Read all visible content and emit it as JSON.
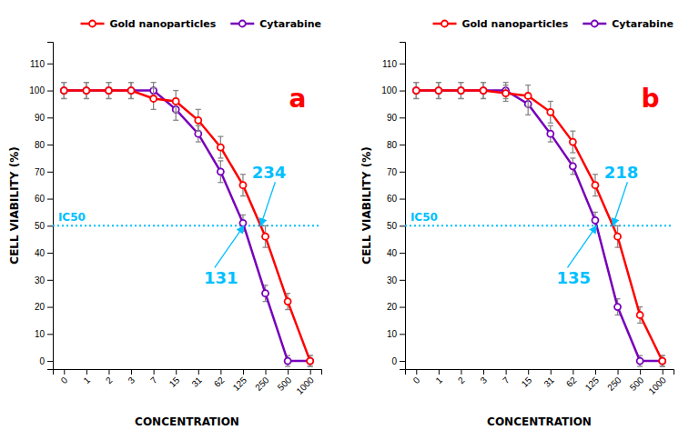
{
  "chart_data": [
    {
      "type": "line",
      "categories": [
        "0",
        "1",
        "2",
        "3",
        "7",
        "15",
        "31",
        "62",
        "125",
        "250",
        "500",
        "1000"
      ],
      "xlabel": "CONCENTRATION",
      "ylabel": "CELL VIABILITY (%)",
      "ylim": [
        -3,
        118
      ],
      "yticks": [
        0,
        10,
        20,
        30,
        40,
        50,
        60,
        70,
        80,
        90,
        100,
        110
      ],
      "grid": false,
      "legend": "upper right",
      "marker": "circle",
      "line_style": "solid",
      "series": [
        {
          "name": "Gold nanoparticles",
          "color": "#ff0000",
          "values": [
            100,
            100,
            100,
            100,
            97,
            96,
            89,
            79,
            65,
            46,
            22,
            0
          ],
          "errors": [
            3,
            3,
            3,
            3,
            4,
            4,
            4,
            4,
            4,
            4,
            3,
            2
          ]
        },
        {
          "name": "Cytarabine",
          "color": "#7700bb",
          "values": [
            100,
            100,
            100,
            100,
            100,
            93,
            84,
            70,
            51,
            25,
            0,
            0
          ],
          "errors": [
            3,
            3,
            3,
            3,
            3,
            4,
            3,
            4,
            3,
            3,
            2,
            2
          ]
        }
      ],
      "annotations": [
        {
          "text": "IC50",
          "y": 50,
          "color": "#00bfff"
        },
        {
          "text": "234",
          "series": "Gold nanoparticles",
          "y": 50,
          "color": "#00bfff"
        },
        {
          "text": "131",
          "series": "Cytarabine",
          "y": 50,
          "color": "#00bfff"
        },
        {
          "text": "a",
          "color": "#ff0000"
        }
      ]
    },
    {
      "type": "line",
      "categories": [
        "0",
        "1",
        "2",
        "3",
        "7",
        "15",
        "31",
        "62",
        "125",
        "250",
        "500",
        "1000"
      ],
      "xlabel": "CONCENTRATION",
      "ylabel": "CELL VIABILITY (%)",
      "ylim": [
        -3,
        118
      ],
      "yticks": [
        0,
        10,
        20,
        30,
        40,
        50,
        60,
        70,
        80,
        90,
        100,
        110
      ],
      "grid": false,
      "legend": "upper right",
      "marker": "circle",
      "line_style": "solid",
      "series": [
        {
          "name": "Gold nanoparticles",
          "color": "#ff0000",
          "values": [
            100,
            100,
            100,
            100,
            99,
            98,
            92,
            81,
            65,
            46,
            17,
            0
          ],
          "errors": [
            3,
            3,
            3,
            3,
            3,
            4,
            4,
            4,
            4,
            4,
            3,
            2
          ]
        },
        {
          "name": "Cytarabine",
          "color": "#7700bb",
          "values": [
            100,
            100,
            100,
            100,
            100,
            95,
            84,
            72,
            52,
            20,
            0,
            0
          ],
          "errors": [
            3,
            3,
            3,
            3,
            3,
            4,
            3,
            3,
            3,
            3,
            2,
            2
          ]
        }
      ],
      "annotations": [
        {
          "text": "IC50",
          "y": 50,
          "color": "#00bfff"
        },
        {
          "text": "218",
          "series": "Gold nanoparticles",
          "y": 50,
          "color": "#00bfff"
        },
        {
          "text": "135",
          "series": "Cytarabine",
          "y": 50,
          "color": "#00bfff"
        },
        {
          "text": "b",
          "color": "#ff0000"
        }
      ]
    }
  ]
}
